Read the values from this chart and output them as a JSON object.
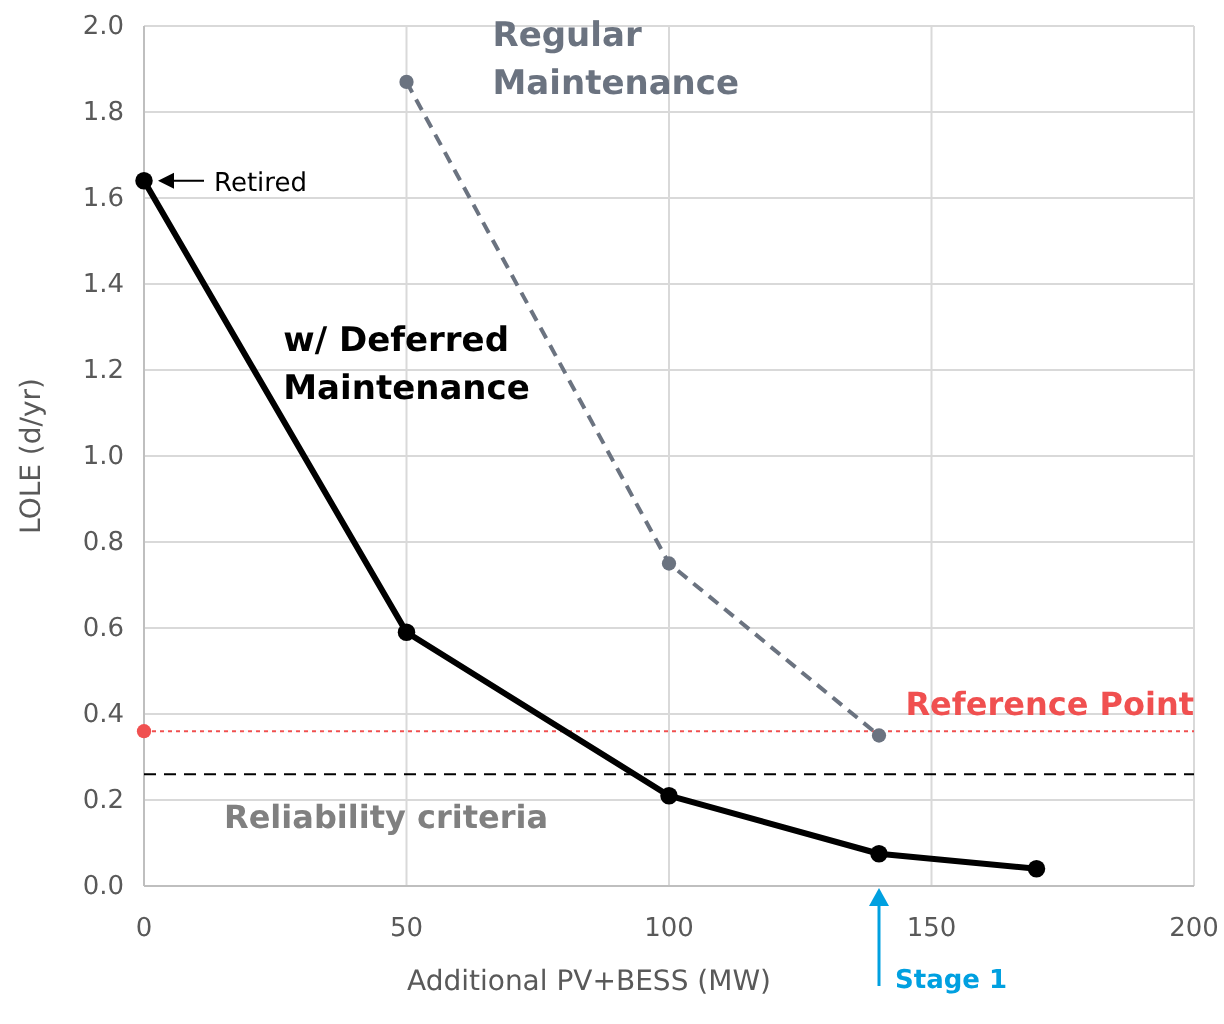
{
  "chart_data": {
    "type": "line",
    "xlabel": "Additional PV+BESS (MW)",
    "ylabel": "LOLE (d/yr)",
    "xlim": [
      0,
      200
    ],
    "xticks": [
      0,
      50,
      100,
      150,
      200
    ],
    "ylim": [
      0,
      2
    ],
    "yticks": [
      {
        "value": 0,
        "label": "0.0"
      },
      {
        "value": 0.2,
        "label": "0.2"
      },
      {
        "value": 0.4,
        "label": "0.4"
      },
      {
        "value": 0.6,
        "label": "0.6"
      },
      {
        "value": 0.8,
        "label": "0.8"
      },
      {
        "value": 1,
        "label": "1.0"
      },
      {
        "value": 1.2,
        "label": "1.2"
      },
      {
        "value": 1.4,
        "label": "1.4"
      },
      {
        "value": 1.6,
        "label": "1.6"
      },
      {
        "value": 1.8,
        "label": "1.8"
      },
      {
        "value": 2,
        "label": "2.0"
      }
    ],
    "grid": true,
    "marker": "circle",
    "series": [
      {
        "name": "w/ Deferred Maintenance",
        "color": "#000000",
        "x": [
          0,
          50,
          100,
          140,
          170
        ],
        "values": [
          1.64,
          0.59,
          0.21,
          0.075,
          0.04
        ],
        "line_style": "solid"
      },
      {
        "name": "Regular Maintenance",
        "color": "#6b7380",
        "x": [
          50,
          100,
          140
        ],
        "values": [
          1.87,
          0.75,
          0.35
        ],
        "line_style": "dashed"
      },
      {
        "type": "scatter",
        "color": "#f05050",
        "x": [
          0
        ],
        "values": [
          0.36
        ]
      }
    ],
    "ref_lines": [
      {
        "axis": "y",
        "value": 0.36,
        "label": "Reference Point",
        "color": "#f05050",
        "line_style": "dotted"
      },
      {
        "axis": "y",
        "value": 0.26,
        "label": "Reliability criteria",
        "color": "#000000",
        "line_style": "dashed"
      },
      {
        "axis": "x",
        "value": 140,
        "label": "Stage 1",
        "color": "#00a0e0"
      }
    ],
    "annotations": [
      {
        "text": "Retired",
        "x": 0,
        "y": 1.64
      }
    ]
  }
}
